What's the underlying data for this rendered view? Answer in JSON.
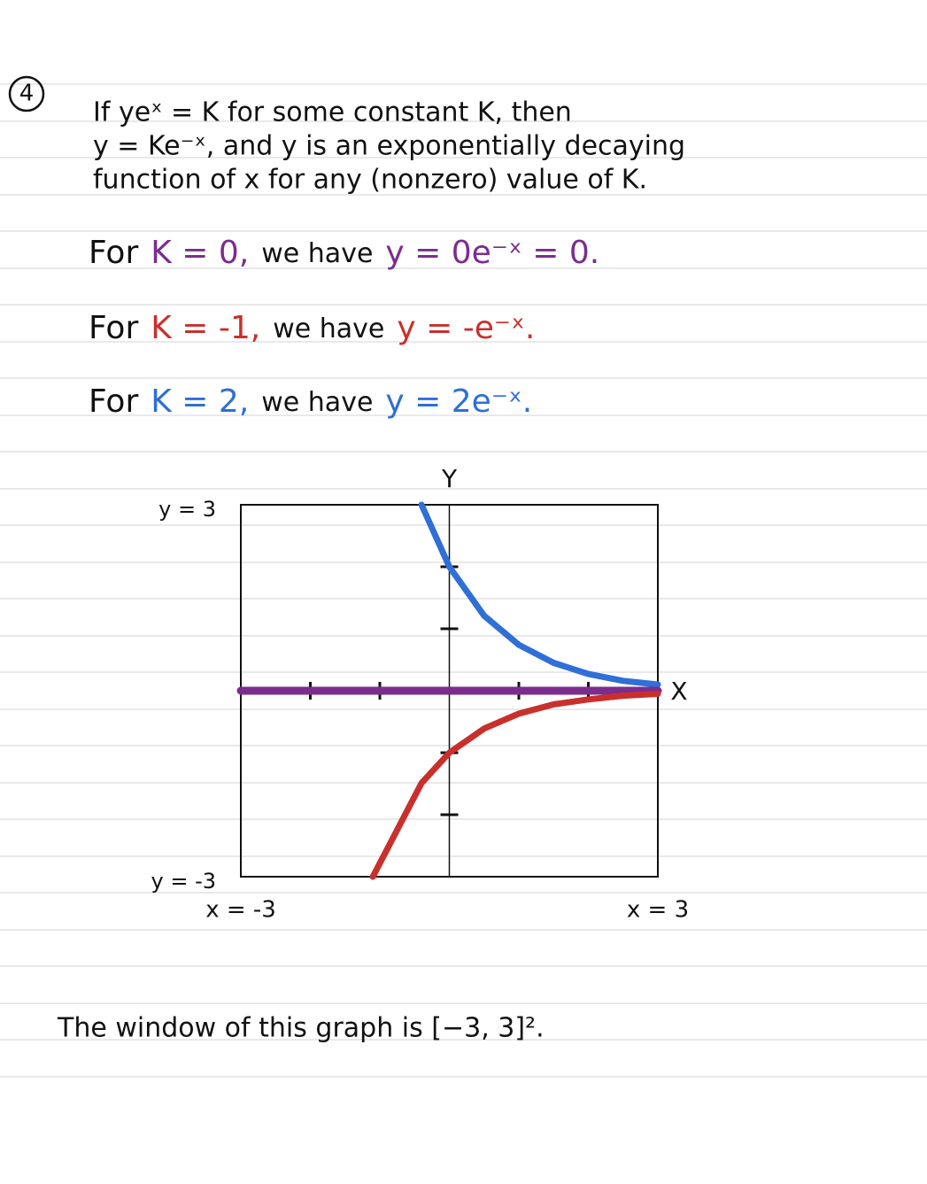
{
  "problem": {
    "number": "4",
    "lines": [
      "If yeˣ = K for some constant K, then",
      "y = Ke⁻ˣ, and y is an exponentially decaying",
      "function of x for any (nonzero) value of K."
    ]
  },
  "examples": [
    {
      "prefix": "For",
      "k": "K = 0,",
      "middle": "we have",
      "equation": "y = 0e⁻ˣ = 0.",
      "color": "#7b2d8e"
    },
    {
      "prefix": "For",
      "k": "K = -1,",
      "middle": "we have",
      "equation": "y = -e⁻ˣ.",
      "color": "#c9302c"
    },
    {
      "prefix": "For",
      "k": "K = 2,",
      "middle": "we have",
      "equation": "y = 2e⁻ˣ.",
      "color": "#2f6fd6"
    }
  ],
  "chart_data": {
    "type": "line",
    "x_label": "X",
    "y_label": "Y",
    "x": [
      -3,
      -1.1,
      -0.4,
      0,
      0.5,
      1,
      1.5,
      2,
      2.5,
      3
    ],
    "series": [
      {
        "color": "#2f6fd6",
        "values": [
          null,
          null,
          3,
          2,
          1.21,
          0.74,
          0.45,
          0.27,
          0.16,
          0.1
        ]
      },
      {
        "color": "#7b2d8e",
        "values": [
          0,
          0,
          0,
          0,
          0,
          0,
          0,
          0,
          0,
          0
        ]
      },
      {
        "color": "#c9302c",
        "values": [
          null,
          -3,
          -1.49,
          -1,
          -0.61,
          -0.37,
          -0.22,
          -0.14,
          -0.08,
          -0.05
        ]
      }
    ],
    "xlim": [
      -3,
      3
    ],
    "ylim": [
      -3,
      3
    ],
    "xticks": [
      {
        "value": -3,
        "label": "x = -3"
      },
      -2,
      -1,
      1,
      2,
      {
        "value": 3,
        "label": "x = 3"
      }
    ],
    "yticks": [
      {
        "value": -3,
        "label": "y = -3"
      },
      -2,
      -1,
      1,
      2,
      {
        "value": 3,
        "label": "y = 3"
      }
    ]
  },
  "footer": "The window of this graph is [−3, 3]²."
}
